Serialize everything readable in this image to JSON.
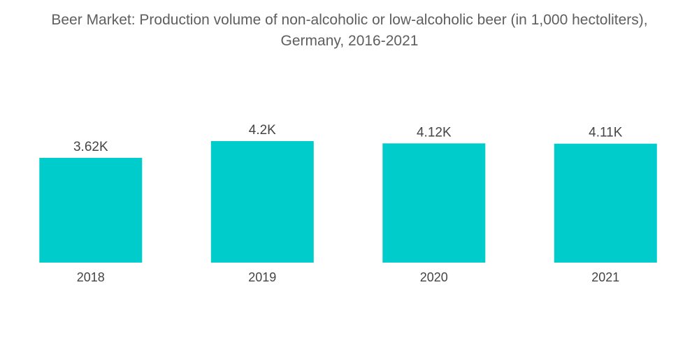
{
  "chart_data": {
    "type": "bar",
    "title_line1": "Beer Market: Production volume of non-alcoholic or low-alcoholic beer (in 1,000 hectoliters),",
    "title_line2": "Germany, 2016-2021",
    "categories": [
      "2018",
      "2019",
      "2020",
      "2021"
    ],
    "values": [
      3620,
      4200,
      4120,
      4110
    ],
    "data_labels": [
      "3.62K",
      "4.2K",
      "4.12K",
      "4.11K"
    ],
    "xlabel": "",
    "ylabel": "",
    "ylim": [
      0,
      4200
    ],
    "grid": false,
    "legend": "none",
    "bar_color": "#00CCCC"
  }
}
